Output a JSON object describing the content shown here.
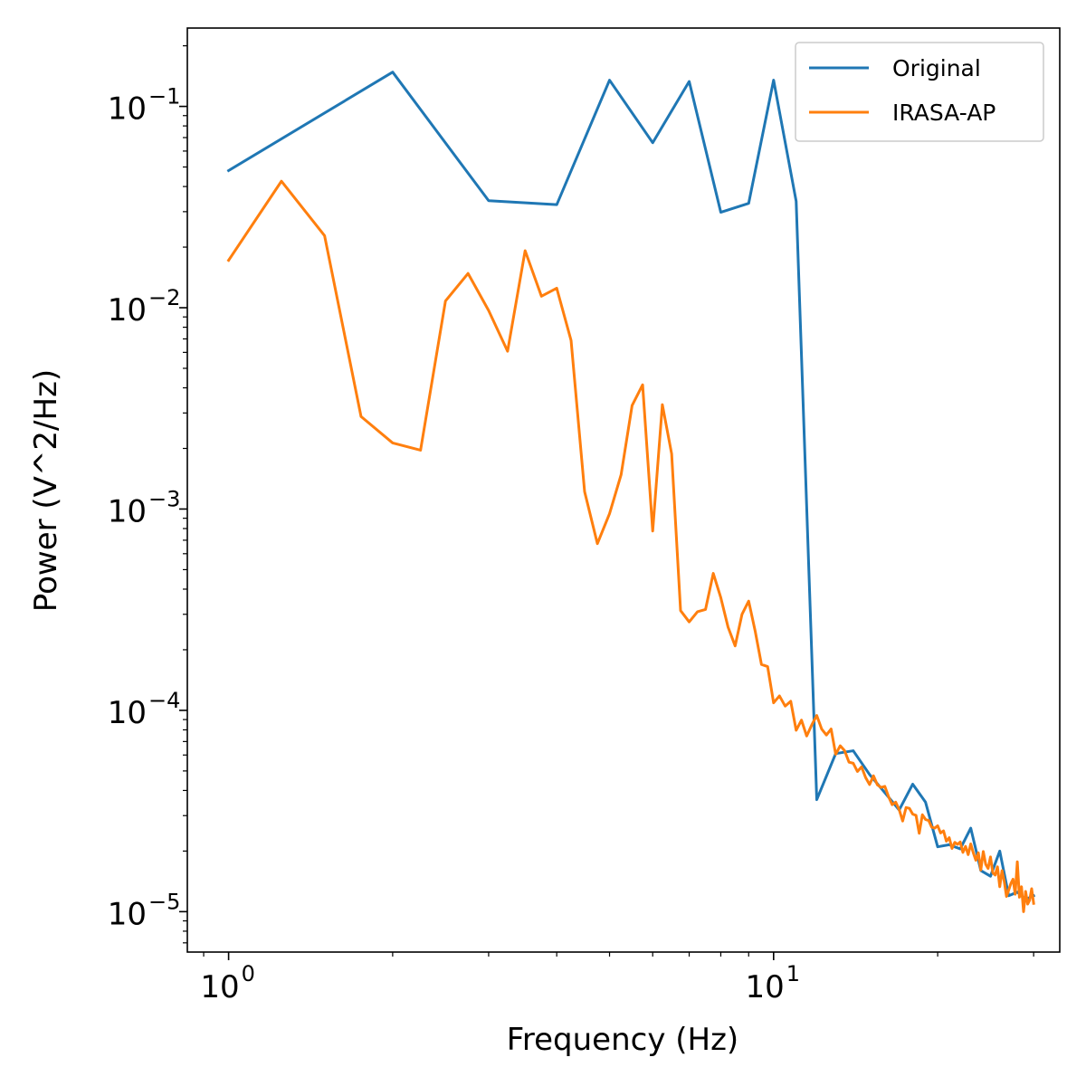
{
  "chart_data": {
    "type": "line",
    "xscale": "log",
    "yscale": "log",
    "xlabel": "Frequency (Hz)",
    "ylabel": "Power (V^2/Hz)",
    "xlim": [
      0.84,
      33.5
    ],
    "ylim": [
      6.3e-06,
      0.245
    ],
    "x_ticks": [
      {
        "base": "10",
        "exp": "0",
        "value": 1
      },
      {
        "base": "10",
        "exp": "1",
        "value": 10
      }
    ],
    "y_ticks": [
      {
        "base": "10",
        "exp": "−5",
        "value": 1e-05
      },
      {
        "base": "10",
        "exp": "−4",
        "value": 0.0001
      },
      {
        "base": "10",
        "exp": "−3",
        "value": 0.001
      },
      {
        "base": "10",
        "exp": "−2",
        "value": 0.01
      },
      {
        "base": "10",
        "exp": "−1",
        "value": 0.1
      }
    ],
    "grid": false,
    "legend_position": "top-right",
    "series": [
      {
        "name": "Original",
        "color": "#1f77b4",
        "x": [
          1,
          2,
          3,
          4,
          5,
          6,
          7,
          8,
          9,
          10,
          11,
          12,
          13,
          14,
          15,
          16,
          17,
          18,
          19,
          20,
          21,
          22,
          23,
          24,
          25,
          26,
          27,
          28,
          29,
          30
        ],
        "y": [
          0.048,
          0.148,
          0.034,
          0.0325,
          0.135,
          0.066,
          0.133,
          0.0298,
          0.033,
          0.135,
          0.0338,
          3.6e-05,
          6.1e-05,
          6.3e-05,
          4.8e-05,
          3.9e-05,
          3.2e-05,
          4.3e-05,
          3.5e-05,
          2.1e-05,
          2.15e-05,
          2.05e-05,
          2.6e-05,
          1.6e-05,
          1.5e-05,
          2e-05,
          1.2e-05,
          1.25e-05,
          1.15e-05,
          1.2e-05
        ]
      },
      {
        "name": "IRASA-AP",
        "color": "#ff7f0e",
        "x": [
          1.0,
          1.25,
          1.5,
          1.75,
          2.0,
          2.25,
          2.5,
          2.75,
          3.0,
          3.25,
          3.5,
          3.75,
          4.0,
          4.25,
          4.5,
          4.75,
          5.0,
          5.25,
          5.5,
          5.75,
          6.0,
          6.25,
          6.5,
          6.75,
          7.0,
          7.25,
          7.5,
          7.75,
          8.0,
          8.25,
          8.5,
          8.75,
          9.0,
          9.25,
          9.5,
          9.75,
          10.0,
          10.25,
          10.5,
          10.75,
          11.0,
          11.25,
          11.5,
          11.75,
          12.0,
          12.25,
          12.5,
          12.75,
          13.0,
          13.25,
          13.5,
          13.75,
          14.0,
          14.25,
          14.5,
          14.75,
          15.0,
          15.25,
          15.5,
          15.75,
          16.0,
          16.25,
          16.5,
          16.75,
          17.0,
          17.25,
          17.5,
          17.75,
          18.0,
          18.25,
          18.5,
          18.75,
          19.0,
          19.25,
          19.5,
          19.75,
          20.0,
          20.25,
          20.5,
          20.75,
          21.0,
          21.25,
          21.5,
          21.75,
          22.0,
          22.25,
          22.5,
          22.75,
          23.0,
          23.25,
          23.5,
          23.75,
          24.0,
          24.25,
          24.5,
          24.75,
          25.0,
          25.25,
          25.5,
          25.75,
          26.0,
          26.25,
          26.5,
          26.75,
          27.0,
          27.25,
          27.5,
          27.75,
          28.0,
          28.25,
          28.5,
          28.75,
          29.0,
          29.25,
          29.5,
          29.75,
          30.0
        ],
        "y": [
          0.0172,
          0.0425,
          0.0228,
          0.00288,
          0.00213,
          0.00196,
          0.0108,
          0.0148,
          0.00968,
          0.00608,
          0.0192,
          0.0114,
          0.0125,
          0.00688,
          0.00122,
          0.000673,
          0.000949,
          0.00148,
          0.00327,
          0.00414,
          0.000778,
          0.0033,
          0.00188,
          0.000313,
          0.000275,
          0.000309,
          0.000317,
          0.000479,
          0.000363,
          0.000259,
          0.000209,
          0.0003,
          0.000349,
          0.000248,
          0.000169,
          0.000165,
          0.000109,
          0.000118,
          0.000105,
          0.000111,
          7.96e-05,
          8.94e-05,
          7.46e-05,
          8.47e-05,
          9.43e-05,
          8.08e-05,
          7.54e-05,
          8.08e-05,
          6.05e-05,
          6.67e-05,
          6.3e-05,
          5.53e-05,
          5.46e-05,
          4.97e-05,
          5.24e-05,
          4.64e-05,
          4.28e-05,
          4.73e-05,
          4.27e-05,
          4.14e-05,
          4.19e-05,
          3.73e-05,
          3.4e-05,
          3.5e-05,
          3.21e-05,
          2.82e-05,
          3.29e-05,
          3.26e-05,
          3.05e-05,
          3.01e-05,
          2.45e-05,
          3.03e-05,
          2.87e-05,
          2.84e-05,
          2.63e-05,
          2.6e-05,
          2.67e-05,
          2.46e-05,
          2.52e-05,
          2.24e-05,
          2.33e-05,
          2.06e-05,
          2.21e-05,
          2.16e-05,
          2.22e-05,
          1.97e-05,
          2.11e-05,
          1.92e-05,
          2.17e-05,
          1.96e-05,
          1.8e-05,
          1.96e-05,
          1.61e-05,
          1.99e-05,
          1.72e-05,
          1.64e-05,
          1.87e-05,
          1.56e-05,
          1.52e-05,
          1.67e-05,
          1.33e-05,
          1.6e-05,
          1.41e-05,
          1.19e-05,
          1.28e-05,
          1.38e-05,
          1.45e-05,
          1.22e-05,
          1.77e-05,
          1.18e-05,
          1.33e-05,
          1e-05,
          1.26e-05,
          1.09e-05,
          1.14e-05,
          1.3e-05,
          1.1e-05
        ]
      }
    ]
  }
}
